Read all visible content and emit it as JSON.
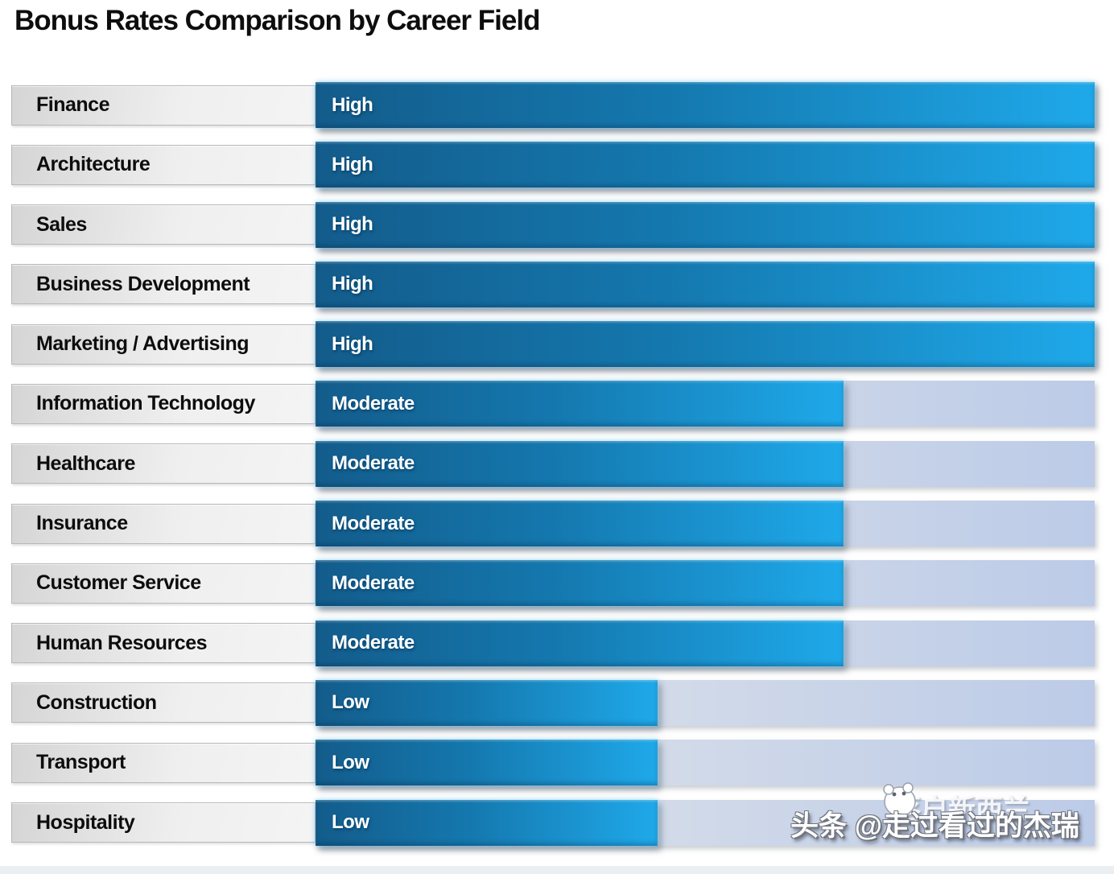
{
  "title": "Bonus Rates Comparison by Career Field",
  "chart_data": {
    "type": "bar",
    "orientation": "horizontal",
    "title": "Bonus Rates Comparison by Career Field",
    "categories": [
      "Finance",
      "Architecture",
      "Sales",
      "Business Development",
      "Marketing / Advertising",
      "Information Technology",
      "Healthcare",
      "Insurance",
      "Customer Service",
      "Human Resources",
      "Construction",
      "Transport",
      "Hospitality"
    ],
    "value_labels": [
      "High",
      "High",
      "High",
      "High",
      "High",
      "Moderate",
      "Moderate",
      "Moderate",
      "Moderate",
      "Moderate",
      "Low",
      "Low",
      "Low"
    ],
    "level_to_percent": {
      "High": 100,
      "Moderate": 67.8,
      "Low": 43.9
    },
    "rows": [
      {
        "field": "Finance",
        "level": "High",
        "percent": 100
      },
      {
        "field": "Architecture",
        "level": "High",
        "percent": 100
      },
      {
        "field": "Sales",
        "level": "High",
        "percent": 100
      },
      {
        "field": "Business Development",
        "level": "High",
        "percent": 100
      },
      {
        "field": "Marketing / Advertising",
        "level": "High",
        "percent": 100
      },
      {
        "field": "Information Technology",
        "level": "Moderate",
        "percent": 67.8
      },
      {
        "field": "Healthcare",
        "level": "Moderate",
        "percent": 67.8
      },
      {
        "field": "Insurance",
        "level": "Moderate",
        "percent": 67.8
      },
      {
        "field": "Customer Service",
        "level": "Moderate",
        "percent": 67.8
      },
      {
        "field": "Human Resources",
        "level": "Moderate",
        "percent": 67.8
      },
      {
        "field": "Construction",
        "level": "Low",
        "percent": 43.9
      },
      {
        "field": "Transport",
        "level": "Low",
        "percent": 43.9
      },
      {
        "field": "Hospitality",
        "level": "Low",
        "percent": 43.9
      }
    ],
    "xlim": [
      0,
      100
    ],
    "grid": false,
    "legend": false
  },
  "watermark": {
    "main_text": "头条 @走过看过的杰瑞",
    "ghost_text": "落户新西兰",
    "icon": "mascot-face-icon"
  },
  "colors": {
    "bar_gradient_start": "#135c8b",
    "bar_gradient_end": "#1fa9ea",
    "track_gradient_start": "#e4e8ee",
    "track_gradient_end": "#bccbe8",
    "label_bg_start": "#d5d5d5",
    "label_bg_end": "#f4f4f5",
    "title_color": "#0d0d0d",
    "bar_text_color": "#ffffff"
  }
}
